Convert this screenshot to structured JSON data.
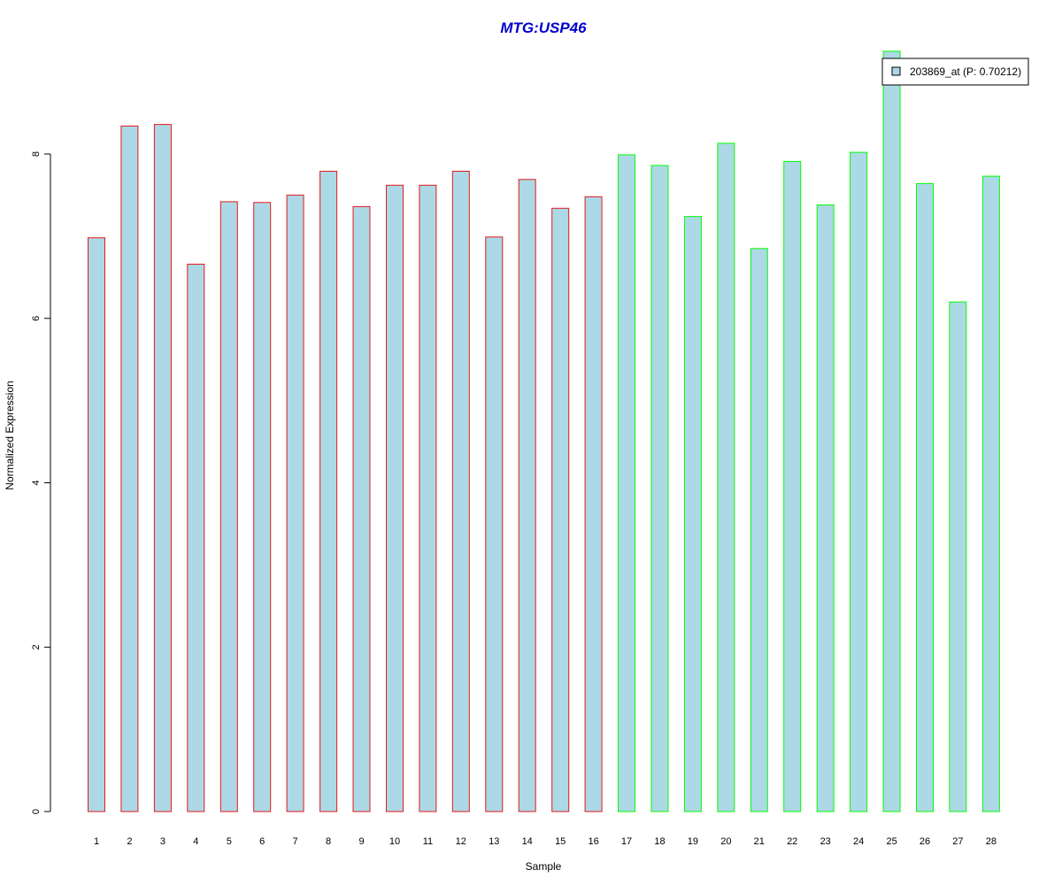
{
  "colors": {
    "title": "#0000CC",
    "bar_fill": "#ADD8E6",
    "group1_border": "#E31A1C",
    "group2_border": "#00FF00",
    "axis": "#000000"
  },
  "chart_data": {
    "type": "bar",
    "title": "MTG:USP46",
    "xlabel": "Sample",
    "ylabel": "Normalized Expression",
    "ylim": [
      0,
      9.3
    ],
    "yticks": [
      "0",
      "2",
      "4",
      "6",
      "8"
    ],
    "grid": false,
    "legend": {
      "label": "203869_at (P: 0.70212)",
      "placement": "top-right"
    },
    "categories": [
      "1",
      "2",
      "3",
      "4",
      "5",
      "6",
      "7",
      "8",
      "9",
      "10",
      "11",
      "12",
      "13",
      "14",
      "15",
      "16",
      "17",
      "18",
      "19",
      "20",
      "21",
      "22",
      "23",
      "24",
      "25",
      "26",
      "27",
      "28"
    ],
    "values": [
      6.98,
      8.34,
      8.36,
      6.66,
      7.42,
      7.41,
      7.5,
      7.79,
      7.36,
      7.62,
      7.62,
      7.79,
      6.99,
      7.69,
      7.34,
      7.48,
      7.99,
      7.86,
      7.24,
      8.13,
      6.85,
      7.91,
      7.38,
      8.02,
      9.25,
      7.64,
      6.2,
      7.73
    ],
    "groups": [
      1,
      1,
      1,
      1,
      1,
      1,
      1,
      1,
      1,
      1,
      1,
      1,
      1,
      1,
      1,
      1,
      2,
      2,
      2,
      2,
      2,
      2,
      2,
      2,
      2,
      2,
      2,
      2
    ]
  }
}
